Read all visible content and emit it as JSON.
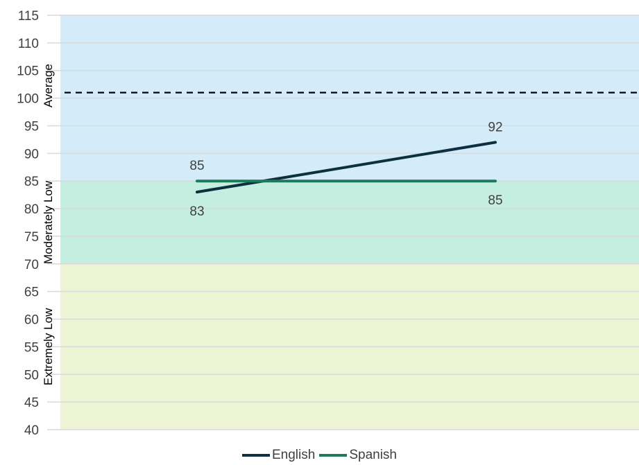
{
  "chart_data": {
    "type": "line",
    "title": "",
    "xlabel": "",
    "ylabel": "",
    "ylim": [
      40,
      115
    ],
    "y_tick_step": 5,
    "y_ticks": [
      "40",
      "45",
      "50",
      "55",
      "60",
      "65",
      "70",
      "75",
      "80",
      "85",
      "90",
      "95",
      "100",
      "105",
      "110",
      "115"
    ],
    "grid": true,
    "x": [
      "",
      ""
    ],
    "series": [
      {
        "name": "English",
        "values": [
          83,
          92
        ],
        "color": "#0d3040",
        "labels": [
          "83",
          "92"
        ],
        "label_position": [
          "below",
          "above"
        ]
      },
      {
        "name": "Spanish",
        "values": [
          85,
          85
        ],
        "color": "#1f7a5a",
        "labels": [
          "85",
          "85"
        ],
        "label_position": [
          "above",
          "below"
        ]
      }
    ],
    "bands": [
      {
        "label": "Extremely Low",
        "from": 40,
        "to": 70,
        "color": "#eef5d6"
      },
      {
        "label": "Moderately Low",
        "from": 70,
        "to": 85,
        "color": "#c4eee0"
      },
      {
        "label": "Average",
        "from": 85,
        "to": 115,
        "color": "#d4ecf9"
      }
    ],
    "reference_line": {
      "value": 101,
      "style": "dashed",
      "color": "#000000"
    },
    "legend": {
      "position": "bottom"
    }
  }
}
